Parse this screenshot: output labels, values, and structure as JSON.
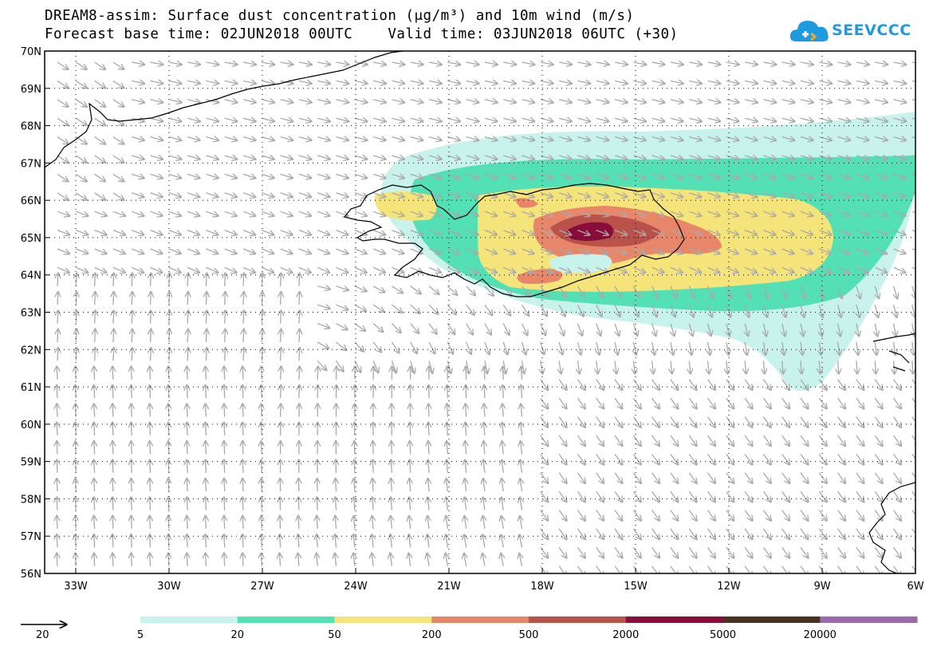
{
  "header": {
    "title_line1": "DREAM8-assim: Surface dust concentration (μg/m³) and 10m wind (m/s)",
    "title_line2": "Forecast base time: 02JUN2018 00UTC    Valid time: 03JUN2018 06UTC (+30)"
  },
  "logo": {
    "text": "SEEVCCC",
    "icon": "cloud-icon"
  },
  "map": {
    "projection": "lat-lon",
    "lon_range": [
      -34,
      -6
    ],
    "lat_range": [
      56,
      70
    ],
    "lat_labels": [
      "56N",
      "57N",
      "58N",
      "59N",
      "60N",
      "61N",
      "62N",
      "63N",
      "64N",
      "65N",
      "66N",
      "67N",
      "68N",
      "69N",
      "70N"
    ],
    "lat_values": [
      56,
      57,
      58,
      59,
      60,
      61,
      62,
      63,
      64,
      65,
      66,
      67,
      68,
      69,
      70
    ],
    "lon_labels": [
      "33W",
      "30W",
      "27W",
      "24W",
      "21W",
      "18W",
      "15W",
      "12W",
      "9W",
      "6W"
    ],
    "lon_values": [
      -33,
      -30,
      -27,
      -24,
      -21,
      -18,
      -15,
      -12,
      -9,
      -6
    ],
    "grid": "dotted",
    "wind_vector_color": "#a9a9a9"
  },
  "legend": {
    "wind_reference": {
      "label": "20",
      "unit_value": 20
    },
    "colorbar": {
      "labels": [
        "5",
        "20",
        "50",
        "200",
        "500",
        "2000",
        "5000",
        "20000"
      ],
      "colors": [
        "#c8f2ec",
        "#52e0b4",
        "#f5e47a",
        "#e8866a",
        "#b8524a",
        "#8a0c3a",
        "#4a3020",
        "#9a6aaa"
      ]
    }
  },
  "dust_levels": {
    "level_5": "#c8f2ec",
    "level_20": "#52e0b4",
    "level_50": "#f5e47a",
    "level_200": "#e8866a",
    "level_500": "#b8524a",
    "level_2000": "#8a0c3a"
  }
}
